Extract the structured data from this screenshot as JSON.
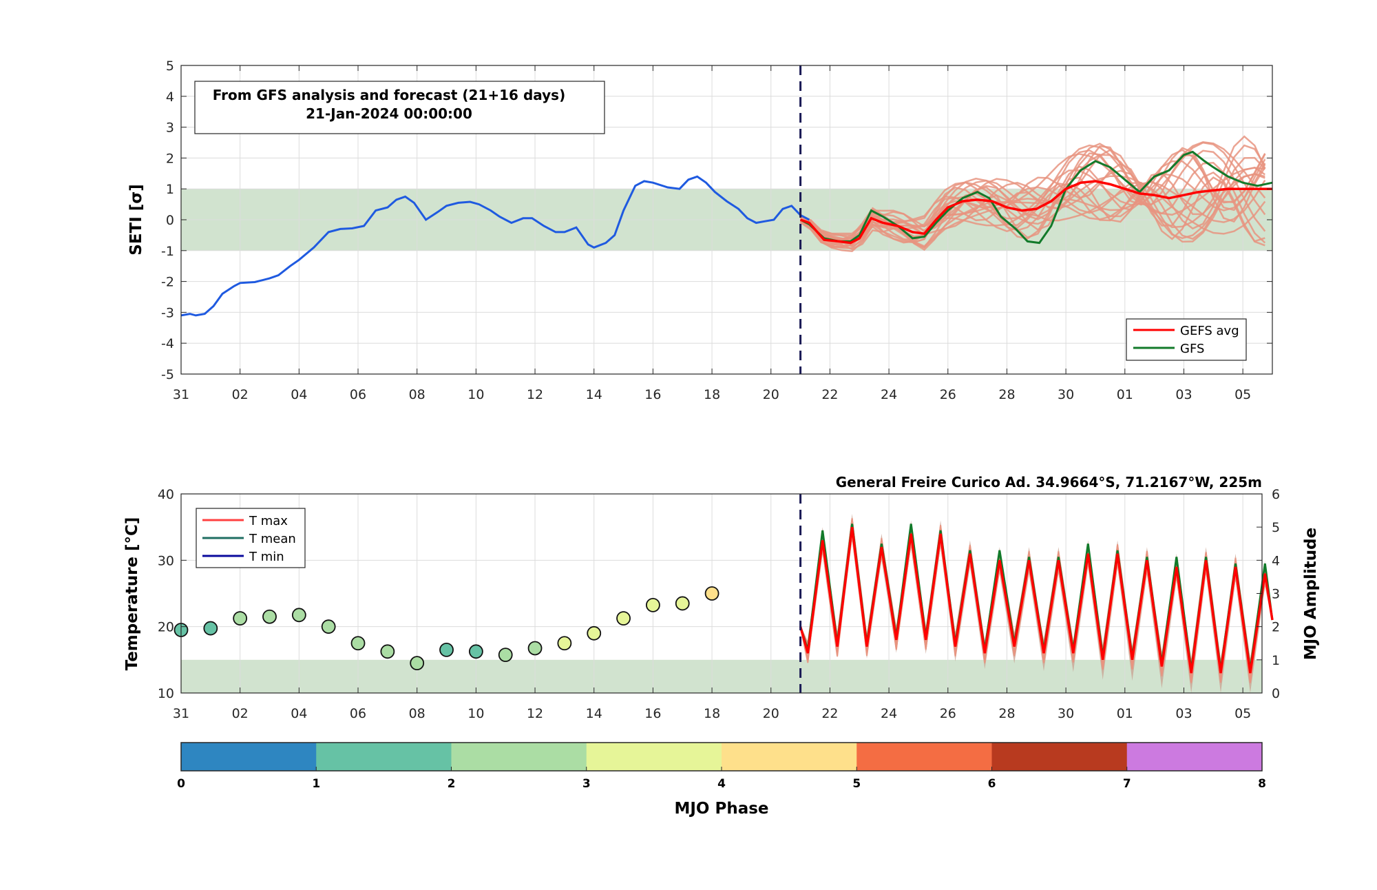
{
  "chart_data": [
    {
      "type": "line",
      "annotation": {
        "line1": "From GFS analysis and forecast (21+16 days)",
        "line2": "21-Jan-2024 00:00:00"
      },
      "ylabel": "SETI [σ]",
      "ylim": [
        -5,
        5
      ],
      "yticks": [
        "5",
        "4",
        "3",
        "2",
        "1",
        "0",
        "-1",
        "-2",
        "-3",
        "-4",
        "-5"
      ],
      "xticks": [
        "31",
        "02",
        "04",
        "06",
        "08",
        "10",
        "12",
        "14",
        "16",
        "18",
        "20",
        "22",
        "24",
        "26",
        "28",
        "30",
        "01",
        "03",
        "05"
      ],
      "x_range_days": [
        0,
        37
      ],
      "forecast_start_day": 21,
      "normal_band": [
        -1,
        1
      ],
      "colors": {
        "analysis": "#1f5ae0",
        "gefs_avg": "#ff0000",
        "gfs": "#127a2a",
        "members": "#e89480",
        "band": "#d1e3cf",
        "vline": "#1a1a55"
      },
      "legend": {
        "placement": "bottom-right",
        "items": [
          "GEFS avg",
          "GFS"
        ]
      },
      "series": [
        {
          "role": "analysis",
          "values": [
            [
              0,
              -3.1
            ],
            [
              0.3,
              -3.05
            ],
            [
              0.5,
              -3.1
            ],
            [
              0.8,
              -3.05
            ],
            [
              1.1,
              -2.8
            ],
            [
              1.4,
              -2.4
            ],
            [
              1.8,
              -2.15
            ],
            [
              2,
              -2.05
            ],
            [
              2.5,
              -2.02
            ],
            [
              3,
              -1.9
            ],
            [
              3.3,
              -1.8
            ],
            [
              3.7,
              -1.5
            ],
            [
              4,
              -1.3
            ],
            [
              4.5,
              -0.9
            ],
            [
              5,
              -0.4
            ],
            [
              5.4,
              -0.3
            ],
            [
              5.8,
              -0.28
            ],
            [
              6.2,
              -0.2
            ],
            [
              6.6,
              0.3
            ],
            [
              7,
              0.4
            ],
            [
              7.3,
              0.65
            ],
            [
              7.6,
              0.75
            ],
            [
              7.9,
              0.55
            ],
            [
              8.3,
              0.0
            ],
            [
              8.7,
              0.25
            ],
            [
              9,
              0.45
            ],
            [
              9.4,
              0.55
            ],
            [
              9.8,
              0.58
            ],
            [
              10.1,
              0.5
            ],
            [
              10.5,
              0.3
            ],
            [
              10.8,
              0.1
            ],
            [
              11.2,
              -0.1
            ],
            [
              11.6,
              0.05
            ],
            [
              11.9,
              0.05
            ],
            [
              12.3,
              -0.2
            ],
            [
              12.7,
              -0.4
            ],
            [
              13,
              -0.4
            ],
            [
              13.4,
              -0.25
            ],
            [
              13.8,
              -0.8
            ],
            [
              14,
              -0.9
            ],
            [
              14.4,
              -0.75
            ],
            [
              14.7,
              -0.5
            ],
            [
              15,
              0.3
            ],
            [
              15.4,
              1.1
            ],
            [
              15.7,
              1.25
            ],
            [
              16,
              1.2
            ],
            [
              16.5,
              1.05
            ],
            [
              16.9,
              1.0
            ],
            [
              17.2,
              1.3
            ],
            [
              17.5,
              1.4
            ],
            [
              17.8,
              1.2
            ],
            [
              18.1,
              0.9
            ],
            [
              18.5,
              0.6
            ],
            [
              18.9,
              0.35
            ],
            [
              19.2,
              0.05
            ],
            [
              19.5,
              -0.1
            ],
            [
              19.8,
              -0.05
            ],
            [
              20.1,
              0.0
            ],
            [
              20.4,
              0.35
            ],
            [
              20.7,
              0.45
            ],
            [
              21,
              0.15
            ],
            [
              21.3,
              0.0
            ]
          ]
        },
        {
          "name": "GEFS avg",
          "role": "gefs_avg",
          "values": [
            [
              21,
              0.0
            ],
            [
              21.3,
              -0.1
            ],
            [
              21.8,
              -0.65
            ],
            [
              22.3,
              -0.7
            ],
            [
              22.7,
              -0.75
            ],
            [
              23,
              -0.6
            ],
            [
              23.4,
              0.05
            ],
            [
              23.8,
              -0.1
            ],
            [
              24.3,
              -0.2
            ],
            [
              24.8,
              -0.4
            ],
            [
              25.2,
              -0.45
            ],
            [
              25.6,
              0.0
            ],
            [
              26,
              0.4
            ],
            [
              26.5,
              0.6
            ],
            [
              27,
              0.65
            ],
            [
              27.5,
              0.6
            ],
            [
              28,
              0.4
            ],
            [
              28.5,
              0.3
            ],
            [
              29,
              0.35
            ],
            [
              29.5,
              0.6
            ],
            [
              30,
              1.0
            ],
            [
              30.5,
              1.2
            ],
            [
              31,
              1.25
            ],
            [
              31.5,
              1.15
            ],
            [
              32,
              1.0
            ],
            [
              32.5,
              0.85
            ],
            [
              33,
              0.8
            ],
            [
              33.5,
              0.7
            ],
            [
              34,
              0.8
            ],
            [
              34.5,
              0.9
            ],
            [
              35,
              0.95
            ],
            [
              35.5,
              1.0
            ],
            [
              36,
              1.0
            ],
            [
              36.5,
              1.0
            ],
            [
              37,
              1.0
            ]
          ]
        },
        {
          "name": "GFS",
          "role": "gfs",
          "values": [
            [
              21,
              0.0
            ],
            [
              21.3,
              -0.15
            ],
            [
              21.8,
              -0.6
            ],
            [
              22.3,
              -0.7
            ],
            [
              22.7,
              -0.7
            ],
            [
              23,
              -0.5
            ],
            [
              23.4,
              0.3
            ],
            [
              23.8,
              0.1
            ],
            [
              24.3,
              -0.2
            ],
            [
              24.8,
              -0.6
            ],
            [
              25.2,
              -0.55
            ],
            [
              25.6,
              -0.1
            ],
            [
              26,
              0.3
            ],
            [
              26.5,
              0.7
            ],
            [
              27,
              0.9
            ],
            [
              27.4,
              0.7
            ],
            [
              27.8,
              0.1
            ],
            [
              28.3,
              -0.3
            ],
            [
              28.7,
              -0.7
            ],
            [
              29.1,
              -0.75
            ],
            [
              29.5,
              -0.2
            ],
            [
              30,
              1.0
            ],
            [
              30.5,
              1.6
            ],
            [
              31,
              1.9
            ],
            [
              31.5,
              1.7
            ],
            [
              32,
              1.3
            ],
            [
              32.5,
              0.9
            ],
            [
              33,
              1.4
            ],
            [
              33.5,
              1.6
            ],
            [
              34,
              2.1
            ],
            [
              34.3,
              2.2
            ],
            [
              34.7,
              1.9
            ],
            [
              35,
              1.7
            ],
            [
              35.5,
              1.4
            ],
            [
              36,
              1.2
            ],
            [
              36.5,
              1.1
            ],
            [
              37,
              1.2
            ]
          ]
        }
      ]
    },
    {
      "type": "line",
      "station": "General Freire Curico Ad. 34.9664°S, 71.2167°W, 225m",
      "ylabel": "Temperature [°C]",
      "y2label": "MJO Amplitude",
      "ylim": [
        10,
        40
      ],
      "yticks": [
        "40",
        "30",
        "20",
        "10"
      ],
      "y2lim": [
        0,
        6
      ],
      "y2ticks": [
        "6",
        "5",
        "4",
        "3",
        "2",
        "1",
        "0"
      ],
      "xticks": [
        "31",
        "02",
        "04",
        "06",
        "08",
        "10",
        "12",
        "14",
        "16",
        "18",
        "20",
        "22",
        "24",
        "26",
        "28",
        "30",
        "01",
        "03",
        "05"
      ],
      "forecast_start_day": 21,
      "band_y2": [
        0,
        1
      ],
      "legend": {
        "placement": "top-left",
        "items": [
          "T max",
          "T mean",
          "T min"
        ]
      },
      "legend_colors": [
        "#ff4040",
        "#1f6e62",
        "#0a0a9c"
      ],
      "mjo_points": [
        {
          "x": 0,
          "amp": 1.9,
          "phase": 1.5
        },
        {
          "x": 1,
          "amp": 1.95,
          "phase": 1.5
        },
        {
          "x": 2,
          "amp": 2.25,
          "phase": 2.5
        },
        {
          "x": 3,
          "amp": 2.3,
          "phase": 2.5
        },
        {
          "x": 4,
          "amp": 2.35,
          "phase": 2.5
        },
        {
          "x": 5,
          "amp": 2.0,
          "phase": 2.5
        },
        {
          "x": 6,
          "amp": 1.5,
          "phase": 2.5
        },
        {
          "x": 7,
          "amp": 1.25,
          "phase": 2.5
        },
        {
          "x": 8,
          "amp": 0.9,
          "phase": 2.5
        },
        {
          "x": 9,
          "amp": 1.3,
          "phase": 1.5
        },
        {
          "x": 10,
          "amp": 1.25,
          "phase": 1.5
        },
        {
          "x": 11,
          "amp": 1.15,
          "phase": 2.5
        },
        {
          "x": 12,
          "amp": 1.35,
          "phase": 2.5
        },
        {
          "x": 13,
          "amp": 1.5,
          "phase": 3.5
        },
        {
          "x": 14,
          "amp": 1.8,
          "phase": 3.5
        },
        {
          "x": 15,
          "amp": 2.25,
          "phase": 3.5
        },
        {
          "x": 16,
          "amp": 2.65,
          "phase": 3.5
        },
        {
          "x": 17,
          "amp": 2.7,
          "phase": 3.5
        },
        {
          "x": 18,
          "amp": 3.0,
          "phase": 4.5
        }
      ],
      "forecast": {
        "start_day": 21,
        "days": 16,
        "peaks": [
          33,
          35,
          32,
          34,
          34,
          31,
          30,
          30,
          30,
          31,
          31,
          30,
          29,
          30,
          29,
          28
        ],
        "troughs": [
          16,
          17,
          17,
          18,
          18,
          17,
          16,
          17,
          16,
          16,
          15,
          15,
          14,
          13,
          13,
          13
        ],
        "colors": {
          "tmax": "#ff0000",
          "gfs": "#127a2a",
          "members": "#e89480",
          "shade": "#c8a090"
        }
      }
    },
    {
      "type": "colorbar",
      "label": "MJO Phase",
      "ticks": [
        "0",
        "1",
        "2",
        "3",
        "4",
        "5",
        "6",
        "7",
        "8"
      ],
      "colors": [
        "#2e86c1",
        "#66c2a5",
        "#abdda4",
        "#e6f598",
        "#fee08b",
        "#f46d43",
        "#b83a1f",
        "#cc7ae0"
      ]
    }
  ]
}
